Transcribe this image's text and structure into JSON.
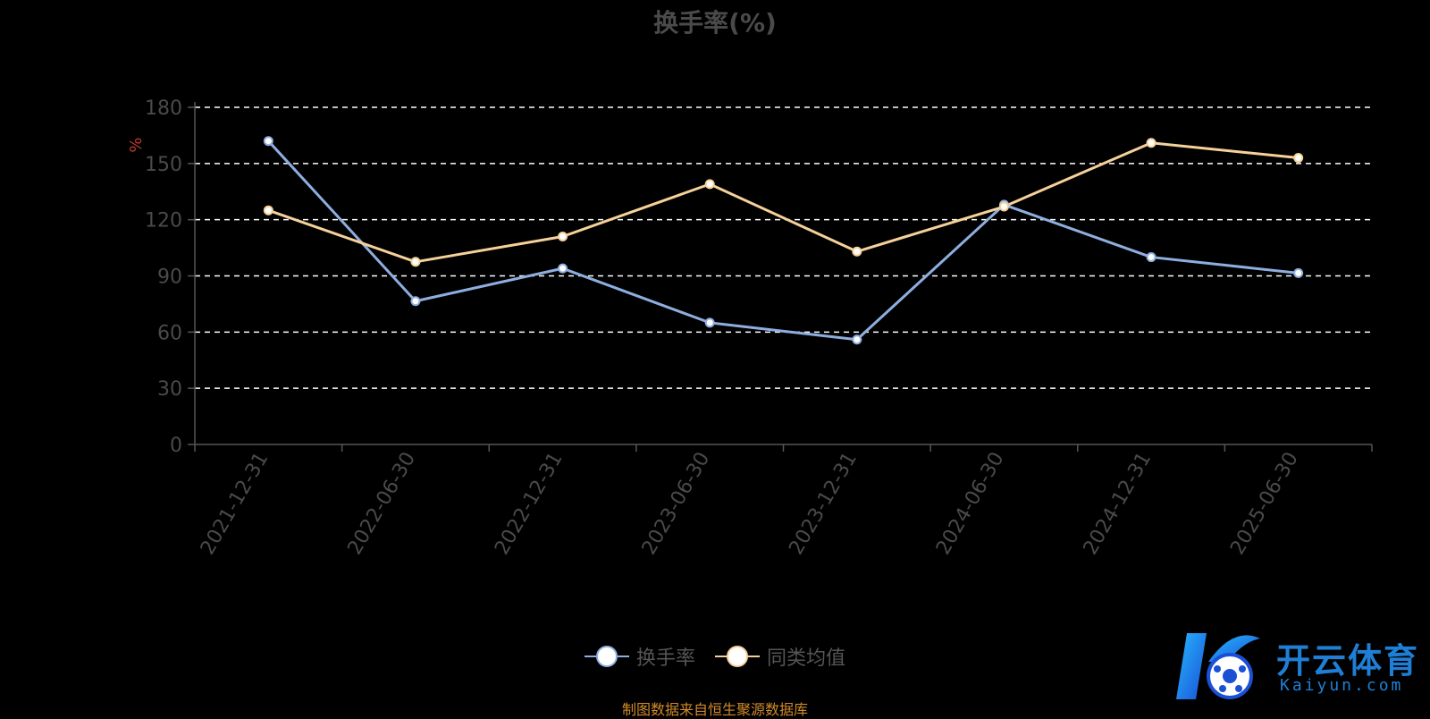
{
  "chart_data": {
    "type": "line",
    "title": "换手率(%)",
    "ylabel": "%",
    "xlabel": "",
    "categories": [
      "2021-12-31",
      "2022-06-30",
      "2022-12-31",
      "2023-06-30",
      "2023-12-31",
      "2024-06-30",
      "2024-12-31",
      "2025-06-30"
    ],
    "series": [
      {
        "name": "换手率",
        "color": "#8eaee0",
        "values": [
          162,
          76.5,
          94,
          65,
          56,
          128,
          100,
          91.5
        ]
      },
      {
        "name": "同类均值",
        "color": "#f6d19a",
        "values": [
          125,
          97.5,
          111,
          139,
          103,
          127,
          161,
          153
        ]
      }
    ],
    "ylim": [
      0,
      180
    ],
    "yticks": [
      0,
      30,
      60,
      90,
      120,
      150,
      180
    ],
    "grid": true,
    "grid_style": "dashed",
    "legend_position": "bottom-center"
  },
  "source_note": "制图数据来自恒生聚源数据库",
  "watermark": {
    "brand": "开云体育",
    "domain": "Kaiyun.com"
  },
  "colors": {
    "background": "#000000",
    "axis": "#555555",
    "grid": "#ffffff",
    "ylabel": "#c0392b"
  }
}
